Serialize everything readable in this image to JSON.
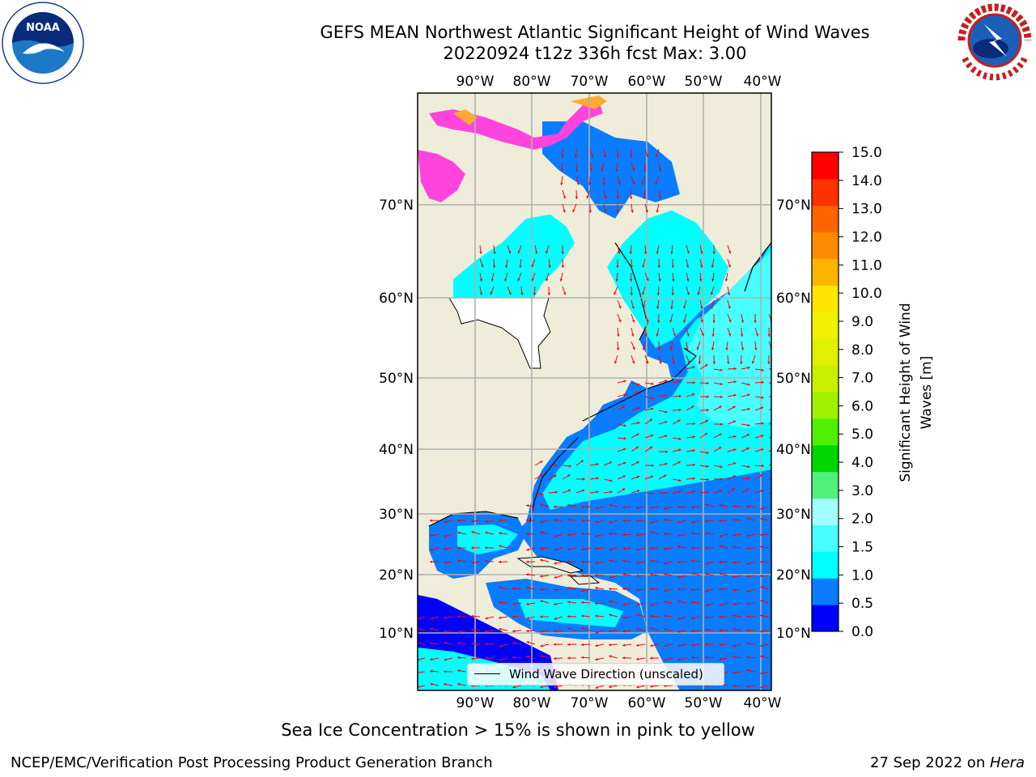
{
  "title": {
    "line1": "GEFS MEAN Northwest Atlantic Significant Height of Wind Waves",
    "line2": "20220924 t12z 336h fcst   Max: 3.00"
  },
  "map": {
    "lon_labels": [
      "90°W",
      "80°W",
      "70°W",
      "60°W",
      "50°W",
      "40°W"
    ],
    "lat_labels": [
      "70°N",
      "60°N",
      "50°N",
      "40°N",
      "30°N",
      "20°N",
      "10°N"
    ],
    "land_color": "#efedda",
    "gridline_color": "#b0b0b0",
    "arrow_color": "#ff0000",
    "legend_text": "Wind Wave Direction (unscaled)"
  },
  "colorbar": {
    "label": "Significant Height of Wind Waves [m]",
    "label_line1": "Significant Height of Wind",
    "label_line2": "Waves [m]",
    "ticks": [
      "15.0",
      "14.0",
      "13.0",
      "12.0",
      "11.0",
      "10.0",
      "9.0",
      "8.0",
      "7.0",
      "6.0",
      "5.0",
      "4.0",
      "3.0",
      "2.0",
      "1.5",
      "1.0",
      "0.5",
      "0.0"
    ],
    "colors_bottom_to_top": [
      "#0000ff",
      "#0a7cff",
      "#00ffff",
      "#47ffff",
      "#a0ffff",
      "#50f07a",
      "#00d700",
      "#4cf000",
      "#a0f000",
      "#c8f000",
      "#e0f000",
      "#f0f000",
      "#ffe600",
      "#ffb400",
      "#ff8c00",
      "#ff6400",
      "#ff3200",
      "#ff0000"
    ]
  },
  "footer": {
    "note": "Sea Ice Concentration > 15% is shown in pink to yellow",
    "credit_left": "NCEP/EMC/Verification Post Processing Product Generation Branch",
    "credit_date": "27 Sep 2022 on ",
    "credit_host": "Hera"
  }
}
